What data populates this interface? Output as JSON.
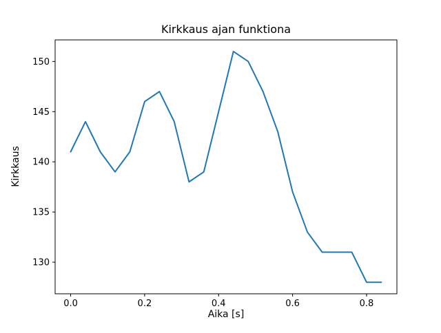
{
  "figure": {
    "background": "#ffffff",
    "text_color": "#000000",
    "spine_color": "#000000"
  },
  "chart_data": {
    "type": "line",
    "title": "Kirkkaus ajan funktiona",
    "xlabel": "Aika [s]",
    "ylabel": "Kirkkaus",
    "x": [
      0.0,
      0.04,
      0.08,
      0.12,
      0.16,
      0.2,
      0.24,
      0.28,
      0.32,
      0.36,
      0.4,
      0.44,
      0.48,
      0.52,
      0.56,
      0.6,
      0.64,
      0.68,
      0.72,
      0.76,
      0.8,
      0.84
    ],
    "series": [
      {
        "name": "Kirkkaus",
        "color": "#1f77b4",
        "values": [
          141,
          144,
          141,
          139,
          141,
          146,
          147,
          144,
          138,
          139,
          145,
          151,
          150,
          147,
          143,
          137,
          133,
          131,
          131,
          131,
          128,
          128
        ]
      }
    ],
    "xlim": [
      -0.042,
      0.882
    ],
    "ylim": [
      126.85,
      152.15
    ],
    "xticks": [
      0.0,
      0.2,
      0.4,
      0.6,
      0.8
    ],
    "xtick_labels": [
      "0.0",
      "0.2",
      "0.4",
      "0.6",
      "0.8"
    ],
    "yticks": [
      130,
      135,
      140,
      145,
      150
    ],
    "ytick_labels": [
      "130",
      "135",
      "140",
      "145",
      "150"
    ],
    "grid": false,
    "legend": "none"
  }
}
